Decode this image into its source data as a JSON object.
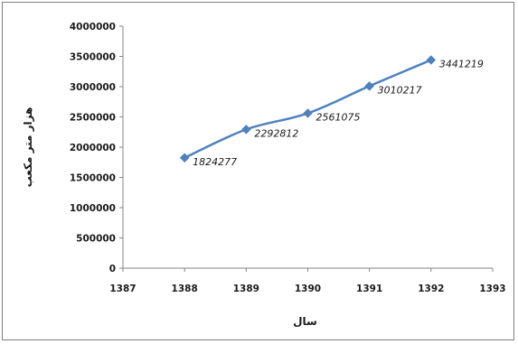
{
  "chart_data": {
    "type": "line",
    "title": "",
    "xlabel": "سال",
    "ylabel": "هزار متر مكعب",
    "x": [
      1388,
      1389,
      1390,
      1391,
      1392
    ],
    "series": [
      {
        "values": [
          1824277,
          2292812,
          2561075,
          3010217,
          3441219
        ],
        "data_labels": [
          "1824277",
          "2292812",
          "2561075",
          "3010217",
          "3441219"
        ],
        "color": "#4f81bd",
        "marker": "diamond"
      }
    ],
    "xlim": [
      1387,
      1393
    ],
    "ylim": [
      0,
      4000000
    ],
    "x_ticks": [
      "1387",
      "1388",
      "1389",
      "1390",
      "1391",
      "1392",
      "1393"
    ],
    "y_ticks": [
      "0",
      "500000",
      "1000000",
      "1500000",
      "2000000",
      "2500000",
      "3000000",
      "3500000",
      "4000000"
    ],
    "grid": false,
    "legend": "none"
  }
}
